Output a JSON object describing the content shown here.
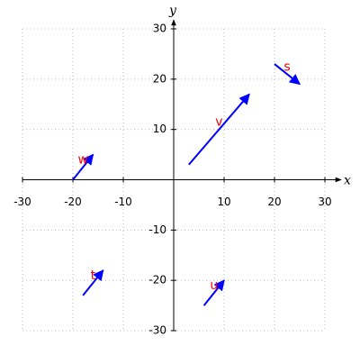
{
  "chart_data": {
    "type": "vector",
    "x_label": "x",
    "y_label": "y",
    "xlim": [
      -30,
      30
    ],
    "ylim": [
      -30,
      30
    ],
    "xticks": [
      -30,
      -20,
      -10,
      10,
      20,
      30
    ],
    "yticks": [
      -30,
      -20,
      -10,
      10,
      20,
      30
    ],
    "grid": true,
    "color": "#0000ff",
    "label_color": "#ff0000",
    "vectors": [
      {
        "name": "w",
        "x": [
          -20,
          -16
        ],
        "y": [
          0,
          5
        ]
      },
      {
        "name": "v",
        "x": [
          3,
          15
        ],
        "y": [
          3,
          17
        ]
      },
      {
        "name": "s",
        "x": [
          20,
          25
        ],
        "y": [
          23,
          19
        ]
      },
      {
        "name": "t",
        "x": [
          -18,
          -14
        ],
        "y": [
          -23,
          -18
        ]
      },
      {
        "name": "u",
        "x": [
          6,
          10
        ],
        "y": [
          -25,
          -20
        ]
      }
    ]
  }
}
